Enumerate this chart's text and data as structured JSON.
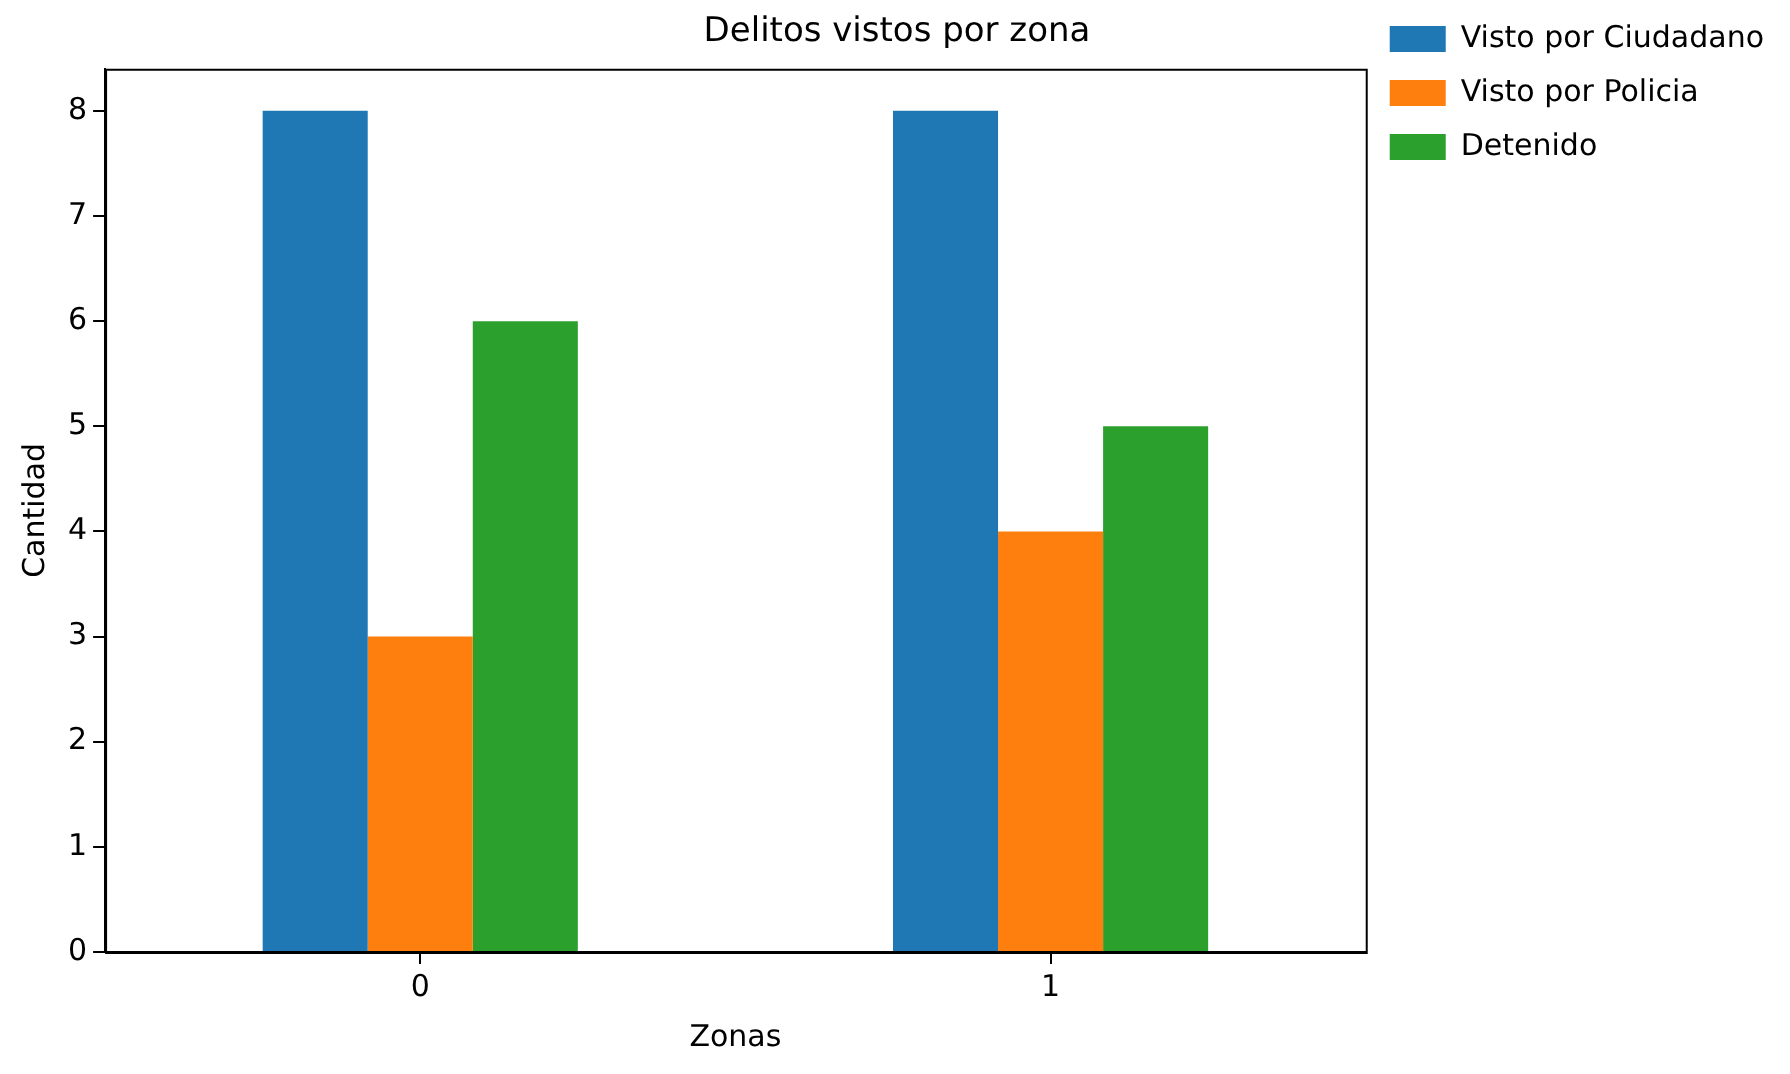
{
  "chart_data": {
    "type": "bar",
    "title": "Delitos vistos por zona",
    "xlabel": "Zonas",
    "ylabel": "Cantidad",
    "categories": [
      "0",
      "1"
    ],
    "series": [
      {
        "name": "Visto por Ciudadano",
        "color": "#1f77b4",
        "values": [
          8,
          8
        ]
      },
      {
        "name": "Visto por Policia",
        "color": "#ff7f0e",
        "values": [
          3,
          4
        ]
      },
      {
        "name": "Detenido",
        "color": "#2ca02c",
        "values": [
          6,
          5
        ]
      }
    ],
    "ylim": [
      0,
      8.4
    ],
    "yticks": [
      0,
      1,
      2,
      3,
      4,
      5,
      6,
      7,
      8
    ],
    "grid": false,
    "legend": "top right"
  }
}
